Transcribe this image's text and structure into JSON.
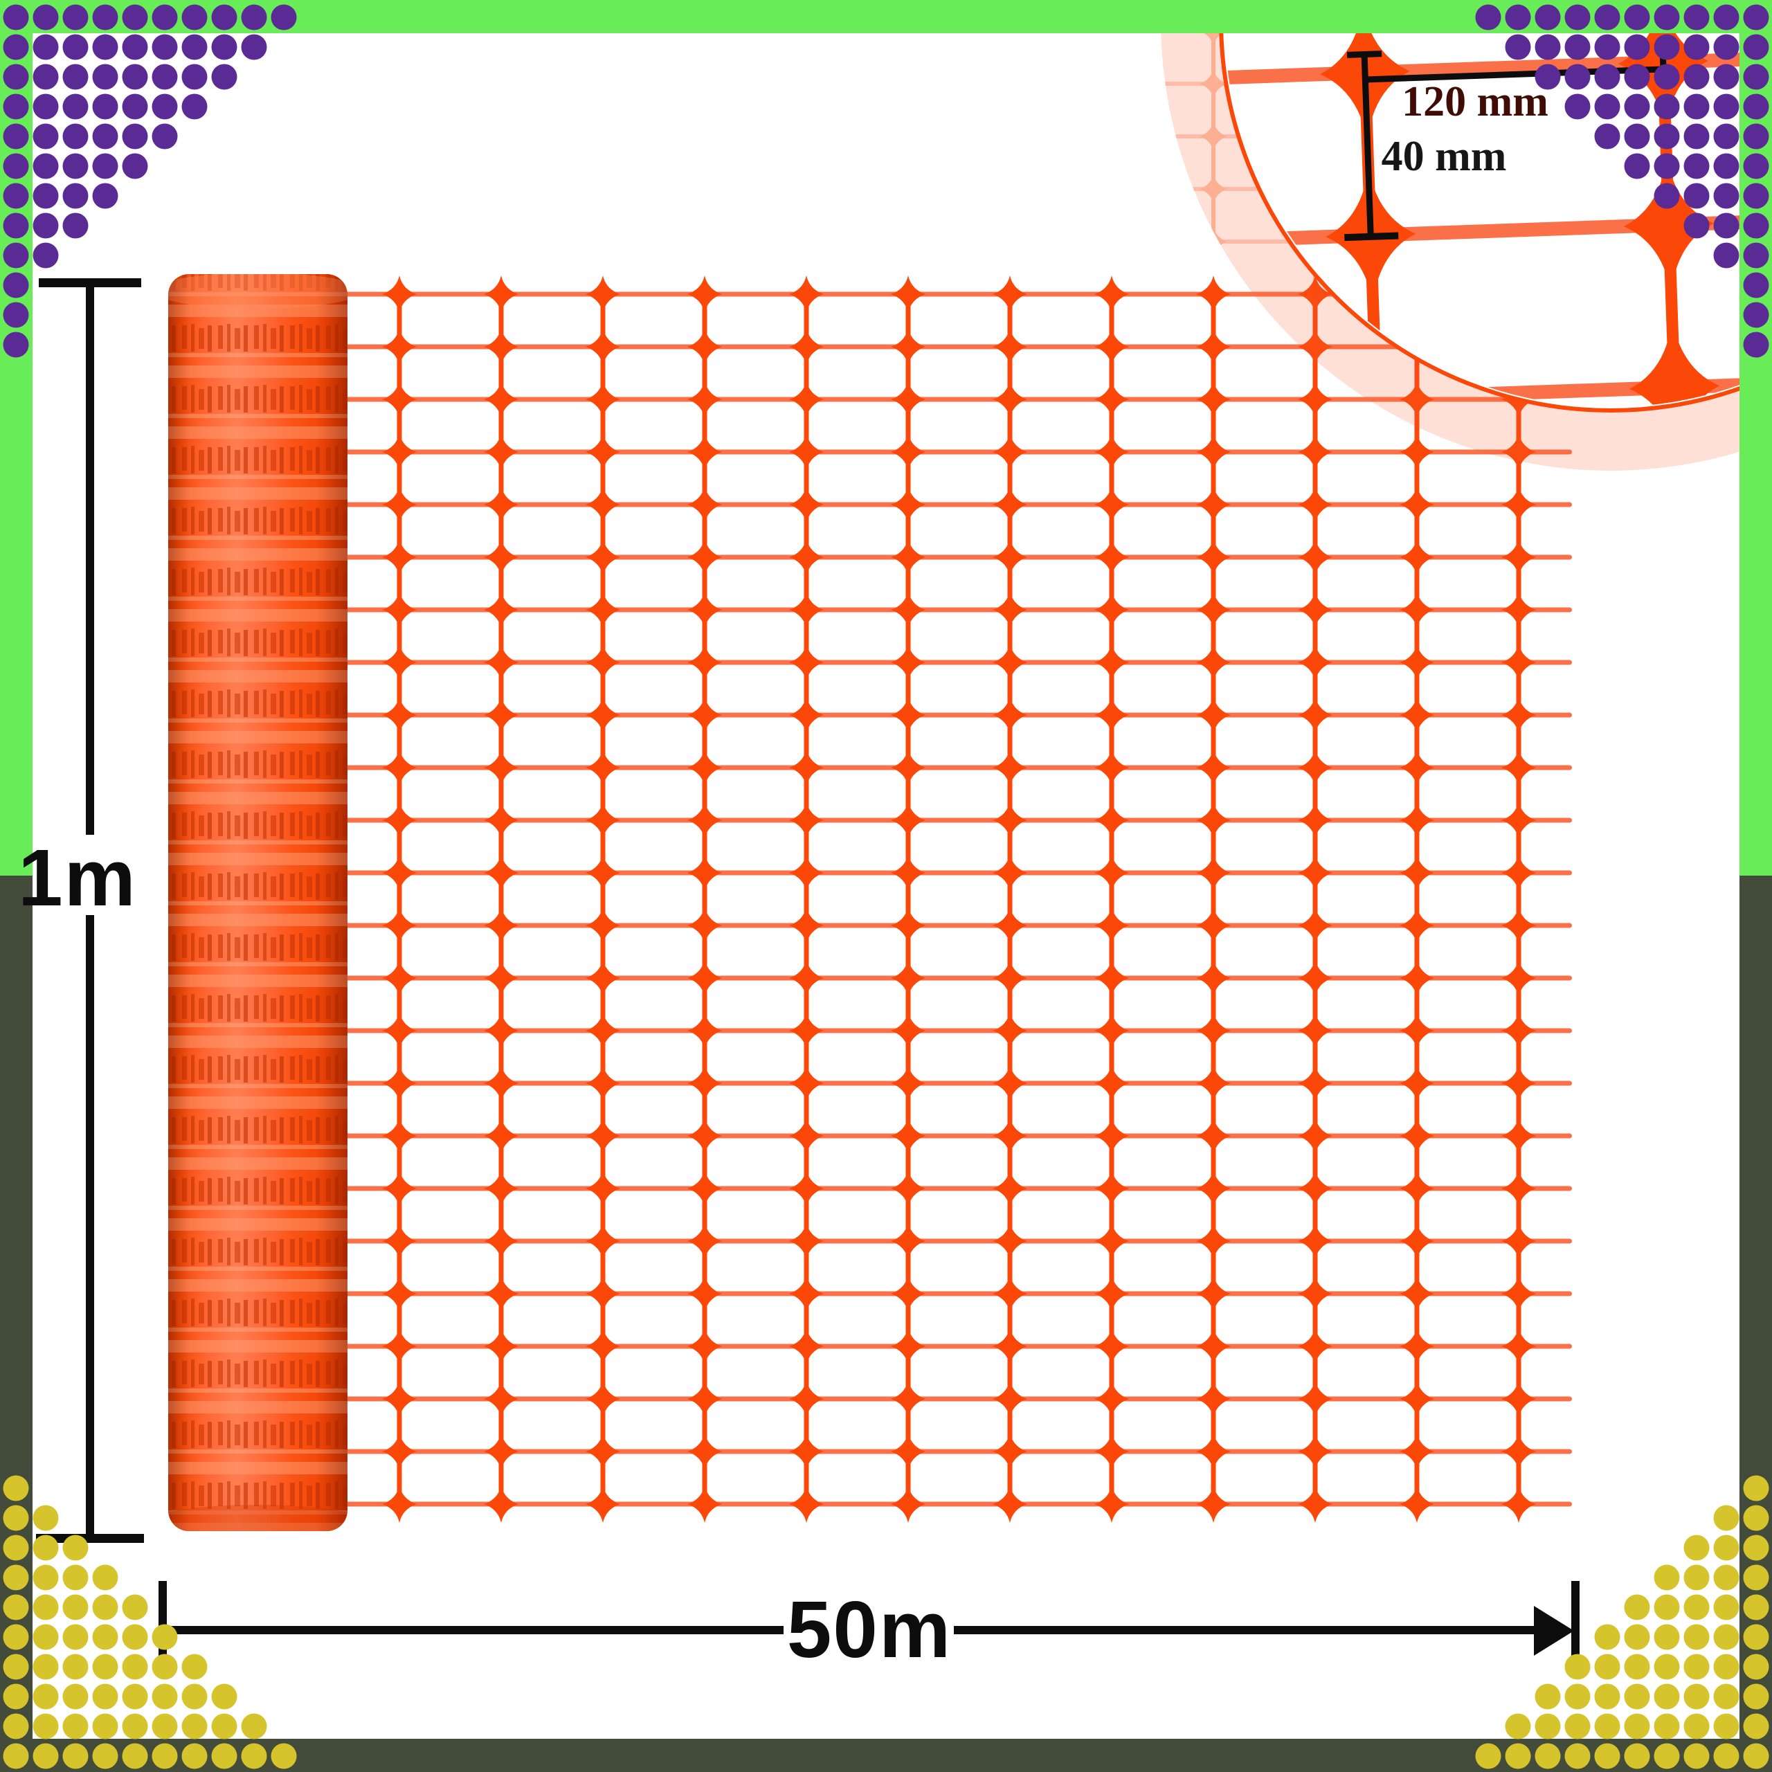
{
  "product_diagram": {
    "description": "orange plastic safety barrier mesh fence roll with dimensions",
    "labels": {
      "roll_height": "1m",
      "roll_length": "50m",
      "inset_cell_width": "120 mm",
      "inset_cell_height": "40 mm"
    }
  },
  "colors": {
    "accent_green": "#68ed58",
    "accent_olive": "#434c3b",
    "dot_purple": "#5b2b95",
    "dot_yellow": "#d5c42c",
    "mesh_orange": "#fb4708",
    "mesh_light": "#fa7049",
    "roll_orange": "#fd4c12",
    "roll_dark": "#c63301",
    "roll_highlight": "#ff9d74",
    "inset_fade_tint": "rgba(251,100,55,0.20)",
    "dim_black": "#0d0d0d",
    "label_maroon": "#400d06"
  },
  "icons": {
    "corner_patterns": [
      "dot-triangle-top-left",
      "dot-triangle-top-right",
      "dot-triangle-bottom-left",
      "dot-triangle-bottom-right"
    ],
    "magnifier": "mesh-zoom-circle",
    "arrows": [
      "height-extent-line",
      "length-arrow-right"
    ]
  }
}
